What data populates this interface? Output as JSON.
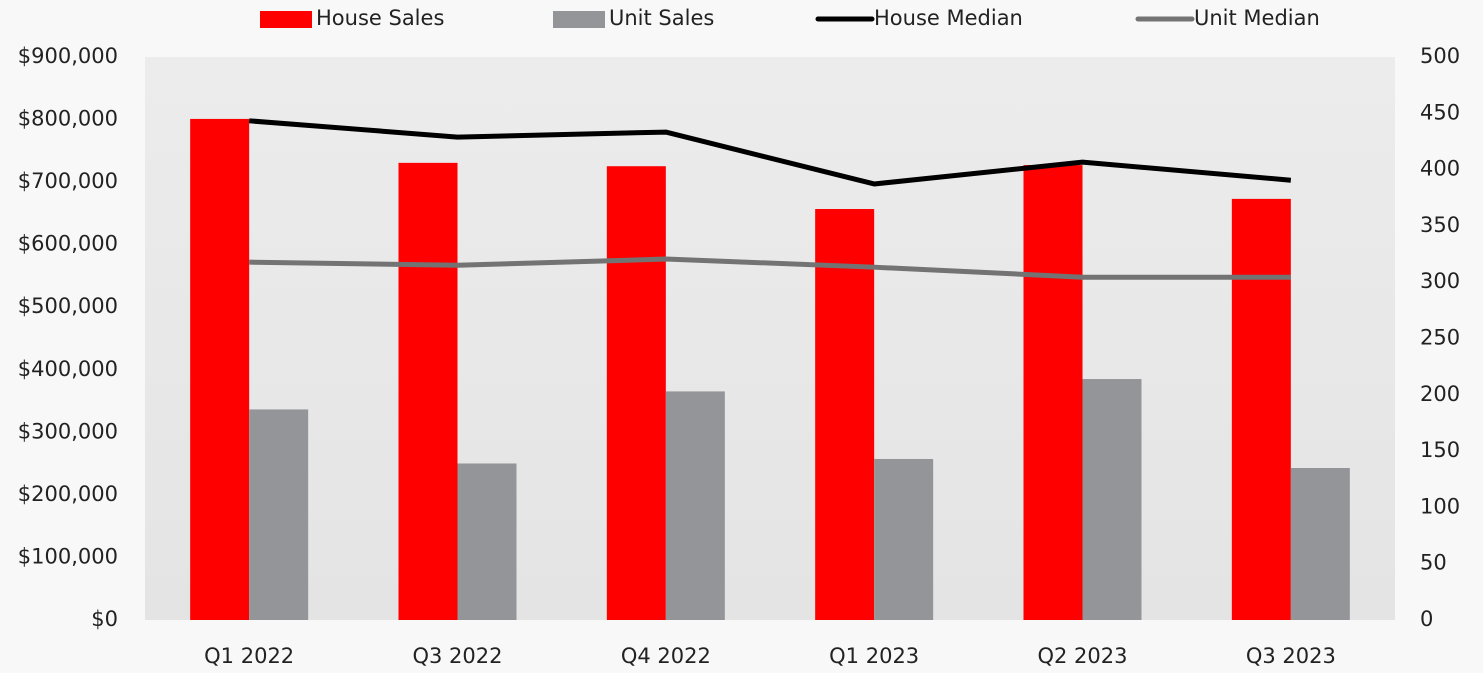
{
  "chart_data": {
    "type": "bar-line",
    "categories": [
      "Q1 2022",
      "Q3 2022",
      "Q4 2022",
      "Q1 2023",
      "Q2 2023",
      "Q3 2023"
    ],
    "series": [
      {
        "name": "House Sales",
        "type": "bar",
        "axis": "y2",
        "color": "#ff0000",
        "values": [
          445,
          406,
          403,
          365,
          404,
          374
        ]
      },
      {
        "name": "Unit Sales",
        "type": "bar",
        "axis": "y2",
        "color": "#939598",
        "values": [
          187,
          139,
          203,
          143,
          214,
          135
        ]
      },
      {
        "name": "House Median",
        "type": "line",
        "color": "#000000",
        "values": [
          798000,
          772000,
          780000,
          697000,
          732000,
          703000
        ]
      },
      {
        "name": "Unit Median",
        "type": "line",
        "color": "#737373",
        "values": [
          572000,
          567000,
          577000,
          564000,
          548000,
          548000
        ]
      }
    ],
    "ylim": [
      0,
      900000
    ],
    "yticks": [
      {
        "value": 0,
        "label": "$0"
      },
      {
        "value": 100000,
        "label": "$100,000"
      },
      {
        "value": 200000,
        "label": "$200,000"
      },
      {
        "value": 300000,
        "label": "$300,000"
      },
      {
        "value": 400000,
        "label": "$400,000"
      },
      {
        "value": 500000,
        "label": "$500,000"
      },
      {
        "value": 600000,
        "label": "$600,000"
      },
      {
        "value": 700000,
        "label": "$700,000"
      },
      {
        "value": 800000,
        "label": "$800,000"
      },
      {
        "value": 900000,
        "label": "$900,000"
      }
    ],
    "y2lim": [
      0,
      500
    ],
    "y2ticks": [
      0,
      50,
      100,
      150,
      200,
      250,
      300,
      350,
      400,
      450,
      500
    ],
    "legend": "top"
  }
}
